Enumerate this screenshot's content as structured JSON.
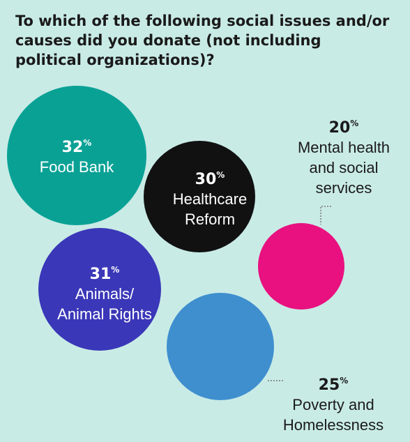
{
  "title": "To which of the following social issues and/or causes did you donate (not including political organizations)?",
  "colors": {
    "background": "#c9ebe6",
    "food_bank": "#0aa195",
    "healthcare": "#111111",
    "animals": "#3a37b8",
    "mental_health": "#e8117f",
    "poverty": "#3f8fcf"
  },
  "chart_data": {
    "type": "bubble",
    "title": "To which of the following social issues and/or causes did you donate (not including political organizations)?",
    "unit": "%",
    "items": [
      {
        "label": "Food Bank",
        "value": 32,
        "color": "#0aa195",
        "label_lines": [
          "Food Bank"
        ],
        "label_position": "inside"
      },
      {
        "label": "Healthcare Reform",
        "value": 30,
        "color": "#111111",
        "label_lines": [
          "Healthcare",
          "Reform"
        ],
        "label_position": "inside"
      },
      {
        "label": "Mental health and social services",
        "value": 20,
        "color": "#e8117f",
        "label_lines": [
          "Mental health",
          "and social",
          "services"
        ],
        "label_position": "outside-top"
      },
      {
        "label": "Animals/ Animal Rights",
        "value": 31,
        "color": "#3a37b8",
        "label_lines": [
          "Animals/",
          "Animal Rights"
        ],
        "label_position": "inside"
      },
      {
        "label": "Poverty and Homelessness",
        "value": 25,
        "color": "#3f8fcf",
        "label_lines": [
          "Poverty and",
          "Homelessness"
        ],
        "label_position": "outside-bottom-right"
      }
    ]
  }
}
